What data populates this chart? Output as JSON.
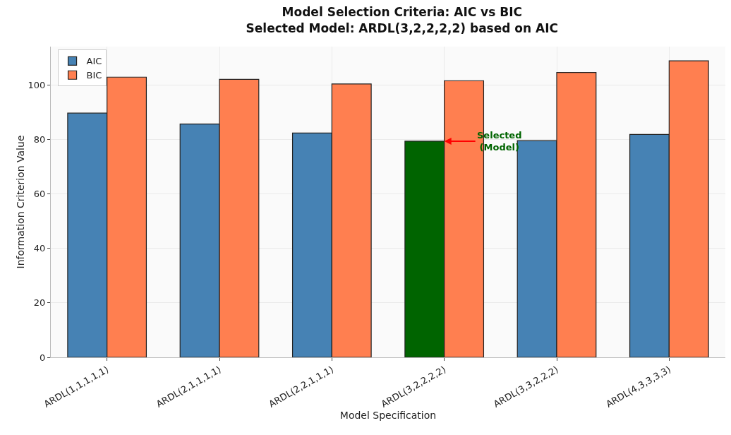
{
  "chart_data": {
    "type": "bar",
    "title": "Model Selection Criteria: AIC vs BIC\nSelected Model: ARDL(3,2,2,2,2) based on AIC",
    "xlabel": "Model Specification",
    "ylabel": "Information Criterion Value",
    "categories": [
      "ARDL(1,1,1,1,1)",
      "ARDL(2,1,1,1,1)",
      "ARDL(2,2,1,1,1)",
      "ARDL(3,2,2,2,2)",
      "ARDL(3,3,2,2,2)",
      "ARDL(4,3,3,3,3)"
    ],
    "series": [
      {
        "name": "AIC",
        "color": "#4682b4",
        "colors": [
          null,
          null,
          null,
          "#006400",
          null,
          null
        ],
        "values": [
          89.6,
          85.6,
          82.3,
          79.3,
          79.5,
          81.8
        ]
      },
      {
        "name": "BIC",
        "color": "#ff7f50",
        "values": [
          102.8,
          102.0,
          100.3,
          101.5,
          104.5,
          108.8
        ]
      }
    ],
    "annotations": [
      {
        "text": "Selected\n(Model)",
        "x": "ARDL(3,2,2,2,2)",
        "y": 79.3
      }
    ],
    "ylim": [
      0,
      114
    ],
    "yticks": [
      0,
      20,
      40,
      60,
      80,
      100
    ],
    "grid": true,
    "legend": "top left"
  }
}
